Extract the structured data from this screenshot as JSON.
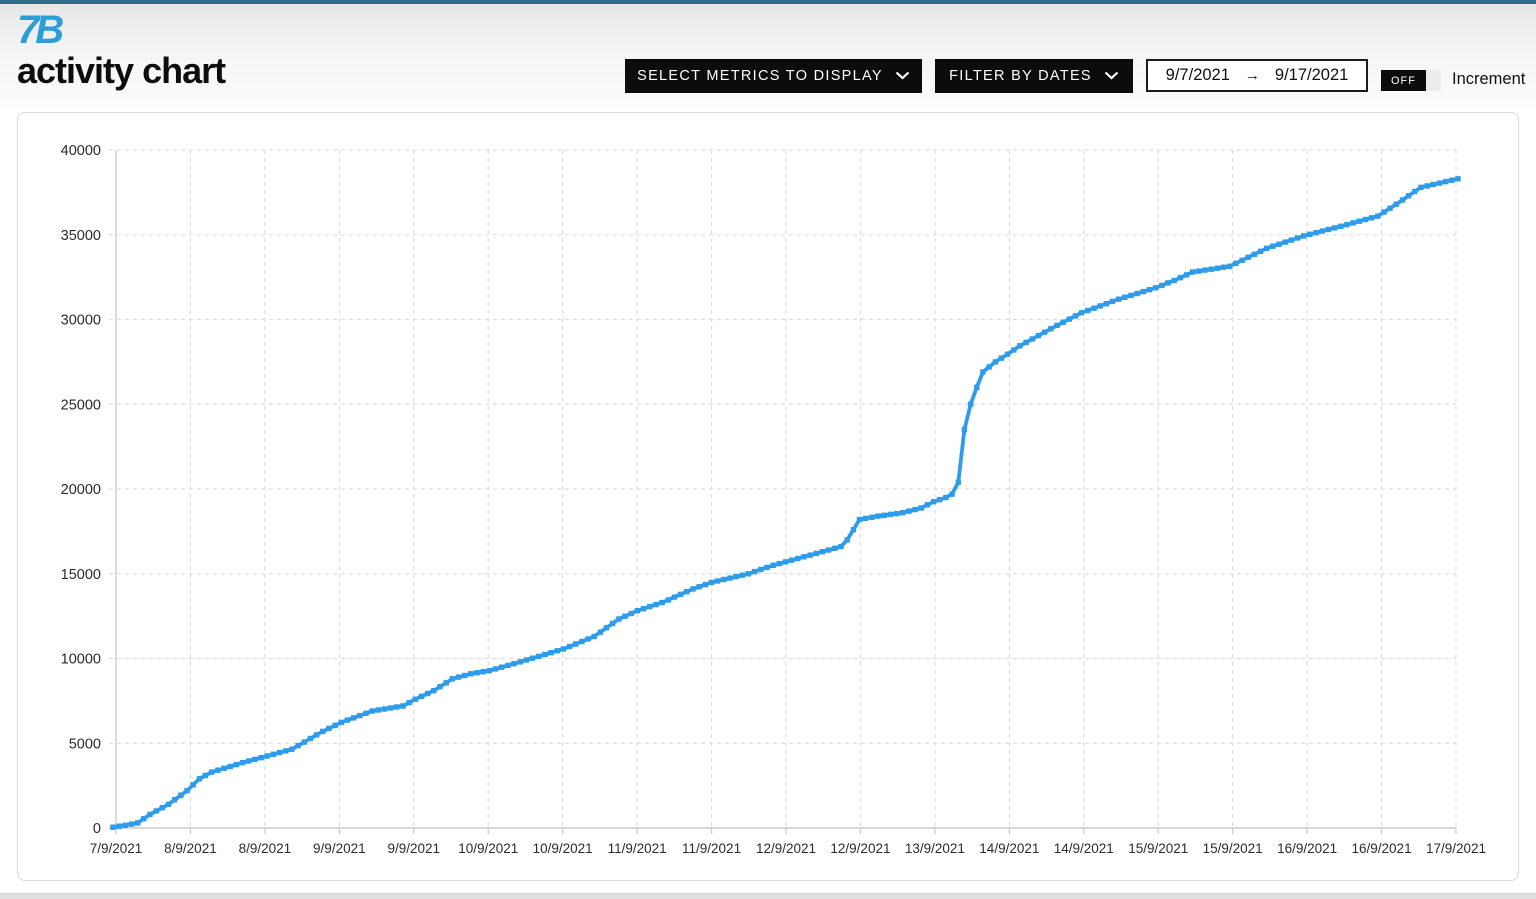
{
  "header": {
    "brand_logo_text": "7B",
    "title": "activity chart",
    "buttons": {
      "select_metrics": "SELECT METRICS TO DISPLAY",
      "filter_by_dates": "FILTER BY DATES"
    },
    "date_range": {
      "start": "9/7/2021",
      "separator": "→",
      "end": "9/17/2021"
    },
    "increment_toggle": {
      "state": "OFF",
      "label": "Increment"
    }
  },
  "colors": {
    "top_bar": "#2e6d8c",
    "brand_blue": "#2d9cdb",
    "series_blue": "#2e9ceb",
    "button_black": "#0c0c0c",
    "grid_gray": "#dedede",
    "axis_gray": "#c9c9c9",
    "tick_text": "#2b2b2b"
  },
  "chart_data": {
    "type": "line",
    "title": "",
    "xlabel": "",
    "ylabel": "",
    "ylim": [
      0,
      40000
    ],
    "y_ticks": [
      0,
      5000,
      10000,
      15000,
      20000,
      25000,
      30000,
      35000,
      40000
    ],
    "x_tick_labels": [
      "7/9/2021",
      "8/9/2021",
      "8/9/2021",
      "9/9/2021",
      "9/9/2021",
      "10/9/2021",
      "10/9/2021",
      "11/9/2021",
      "11/9/2021",
      "12/9/2021",
      "12/9/2021",
      "13/9/2021",
      "14/9/2021",
      "14/9/2021",
      "15/9/2021",
      "15/9/2021",
      "16/9/2021",
      "16/9/2021",
      "17/9/2021"
    ],
    "x_tick_interval_hours": 12,
    "grid": true,
    "legend": false,
    "series": [
      {
        "name": "activity",
        "color": "#2e9ceb",
        "marker": "square",
        "point_interval_hours": 1,
        "x_range_hours": [
          0,
          218
        ],
        "keyframes_hour_value": [
          [
            0,
            50
          ],
          [
            2,
            160
          ],
          [
            4,
            300
          ],
          [
            6,
            800
          ],
          [
            9,
            1400
          ],
          [
            12,
            2200
          ],
          [
            14,
            2900
          ],
          [
            16,
            3300
          ],
          [
            21,
            3850
          ],
          [
            24,
            4150
          ],
          [
            29,
            4650
          ],
          [
            34,
            5700
          ],
          [
            37,
            6230
          ],
          [
            42,
            6900
          ],
          [
            47,
            7200
          ],
          [
            49,
            7600
          ],
          [
            52,
            8100
          ],
          [
            55,
            8800
          ],
          [
            58,
            9100
          ],
          [
            61,
            9280
          ],
          [
            66,
            9800
          ],
          [
            73,
            10560
          ],
          [
            78,
            11300
          ],
          [
            82,
            12330
          ],
          [
            85,
            12820
          ],
          [
            89,
            13300
          ],
          [
            94,
            14100
          ],
          [
            97,
            14490
          ],
          [
            103,
            15000
          ],
          [
            107,
            15500
          ],
          [
            108,
            15600
          ],
          [
            118,
            16600
          ],
          [
            119,
            17000
          ],
          [
            121,
            18200
          ],
          [
            124,
            18400
          ],
          [
            128,
            18600
          ],
          [
            131,
            18880
          ],
          [
            133,
            19250
          ],
          [
            135,
            19500
          ],
          [
            136,
            19700
          ],
          [
            137,
            20400
          ],
          [
            138,
            23500
          ],
          [
            139,
            25000
          ],
          [
            140,
            26000
          ],
          [
            141,
            26900
          ],
          [
            143,
            27500
          ],
          [
            145,
            27950
          ],
          [
            147,
            28450
          ],
          [
            150,
            29050
          ],
          [
            153,
            29650
          ],
          [
            157,
            30400
          ],
          [
            163,
            31200
          ],
          [
            169,
            31870
          ],
          [
            172,
            32300
          ],
          [
            175,
            32800
          ],
          [
            181,
            33140
          ],
          [
            187,
            34200
          ],
          [
            193,
            34930
          ],
          [
            199,
            35500
          ],
          [
            205,
            36100
          ],
          [
            208,
            36800
          ],
          [
            212,
            37800
          ],
          [
            215,
            38050
          ],
          [
            218,
            38300
          ]
        ]
      }
    ]
  }
}
